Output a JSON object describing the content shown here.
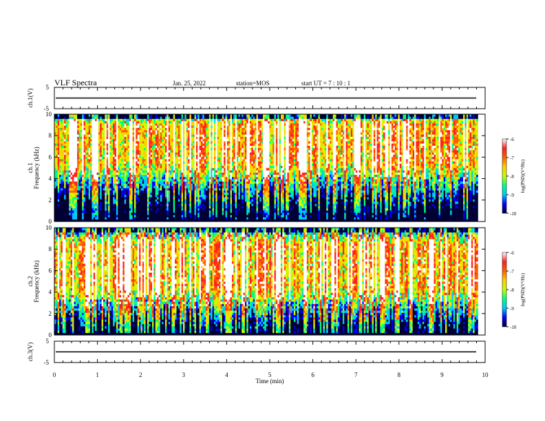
{
  "header": {
    "title": "VLF Spectra",
    "date": "Jan. 25, 2022",
    "station": "station=MOS",
    "start_ut": "start UT =  7 : 10 : 1"
  },
  "chart_data": [
    {
      "type": "line",
      "panel": "ch1-voltage",
      "ylabel": "ch.1(V)",
      "ylim": [
        -5,
        5
      ],
      "yticks": [
        "5",
        "-5"
      ],
      "xlim": [
        0,
        10
      ],
      "trace_level": 0,
      "trace_color": "#000000"
    },
    {
      "type": "heatmap",
      "panel": "ch1-spectrogram",
      "ylabel_line1": "ch.1",
      "ylabel_line2": "Frequency (kHz)",
      "ylim": [
        0,
        10
      ],
      "yticks": [
        "0",
        "2",
        "4",
        "6",
        "8",
        "10"
      ],
      "xlim": [
        0,
        9.83
      ],
      "colorbar": {
        "label": "log(PSD)(V²/Hz)",
        "ticks": [
          "-6",
          "-7",
          "-8",
          "-9",
          "-10"
        ],
        "range": [
          -10,
          -6
        ]
      },
      "dominant_band_khz": [
        5.5,
        9.0
      ]
    },
    {
      "type": "heatmap",
      "panel": "ch2-spectrogram",
      "ylabel_line1": "ch.2",
      "ylabel_line2": "Frequency (kHz)",
      "ylim": [
        0,
        10
      ],
      "yticks": [
        "0",
        "2",
        "4",
        "6",
        "8",
        "10"
      ],
      "xlim": [
        0,
        9.83
      ],
      "colorbar": {
        "label": "log(PSD)(V²/Hz)",
        "ticks": [
          "-6",
          "-7",
          "-8",
          "-9",
          "-10"
        ],
        "range": [
          -10,
          -6
        ]
      },
      "dominant_band_khz": [
        4.5,
        8.5
      ]
    },
    {
      "type": "line",
      "panel": "ch3-voltage",
      "ylabel": "ch.3(V)",
      "ylim": [
        -5,
        5
      ],
      "yticks": [
        "5",
        "-5"
      ],
      "xlim": [
        0,
        10
      ],
      "trace_level": 0,
      "trace_color": "#000000"
    }
  ],
  "x_axis": {
    "label": "Time (min)",
    "ticks": [
      "0",
      "1",
      "2",
      "3",
      "4",
      "5",
      "6",
      "7",
      "8",
      "9",
      "10"
    ],
    "range": [
      0,
      10
    ]
  },
  "colormap": [
    "#000033",
    "#0000ff",
    "#00c8ff",
    "#00ff80",
    "#c8ff00",
    "#ffd000",
    "#ff6000",
    "#ff2020",
    "#ffffff"
  ]
}
